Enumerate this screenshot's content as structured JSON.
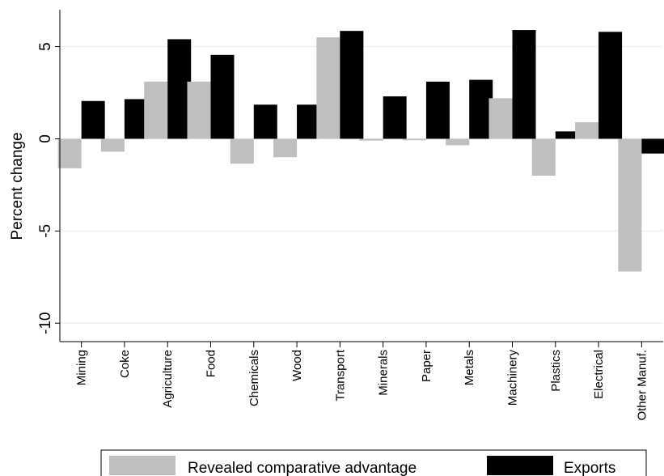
{
  "chart_data": {
    "type": "bar",
    "title": "",
    "xlabel": "",
    "ylabel": "Percent change",
    "ylim": [
      -11,
      7
    ],
    "yticks": [
      -10,
      -5,
      0,
      5
    ],
    "ytick_labels": [
      "-10",
      "-5",
      "0",
      "5"
    ],
    "grid": true,
    "legend_position": "bottom",
    "categories": [
      "Mining",
      "Coke",
      "Agriculture",
      "Food",
      "Chemicals",
      "Wood",
      "Transport",
      "Minerals",
      "Paper",
      "Metals",
      "Machinery",
      "Plastics",
      "Electrical",
      "Other Manuf."
    ],
    "series": [
      {
        "name": "Revealed comparative advantage",
        "color": "#bfbfbf",
        "values": [
          -1.6,
          -0.7,
          3.1,
          3.1,
          -1.35,
          -1.0,
          5.5,
          -0.1,
          -0.08,
          -0.35,
          2.2,
          -2.0,
          0.9,
          -7.2
        ]
      },
      {
        "name": "Exports",
        "color": "#000000",
        "values": [
          2.05,
          2.15,
          5.4,
          4.55,
          1.85,
          1.85,
          5.85,
          2.3,
          3.1,
          3.2,
          5.9,
          0.4,
          5.8,
          -0.8
        ]
      }
    ]
  }
}
